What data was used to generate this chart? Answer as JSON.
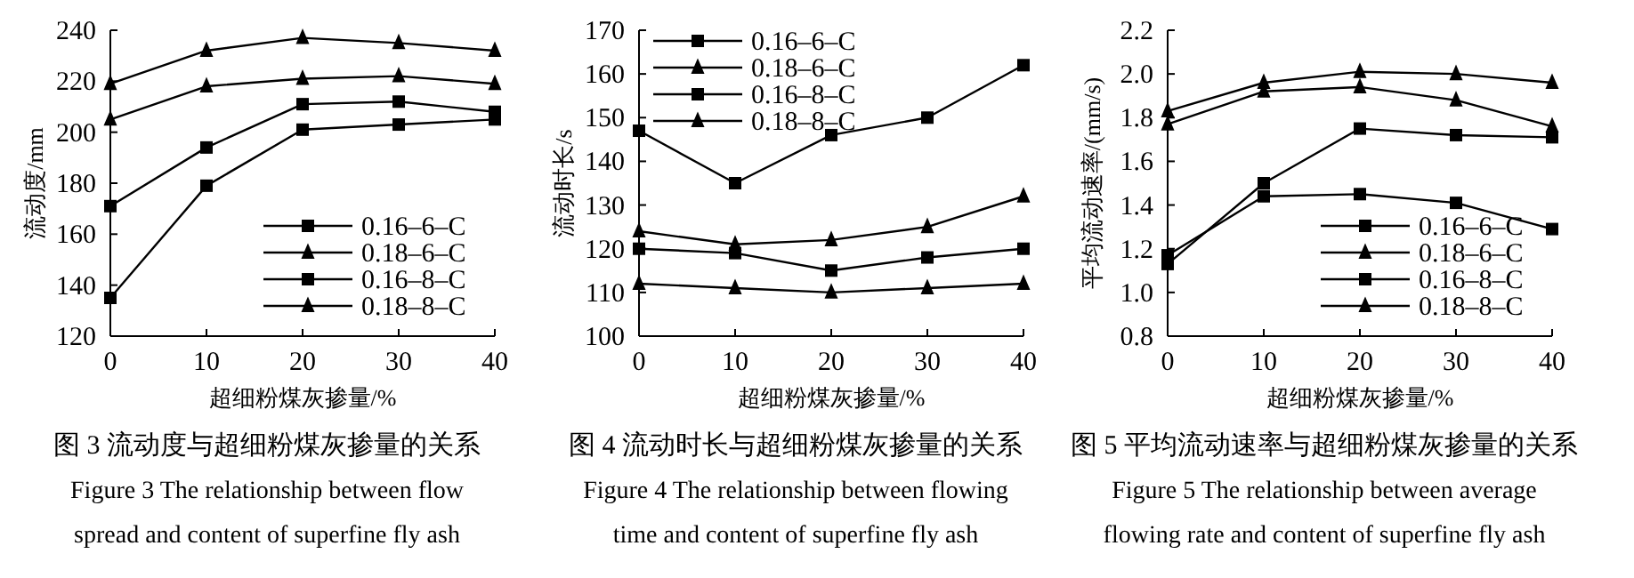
{
  "chart_data": [
    {
      "type": "line",
      "xlabel": "超细粉煤灰掺量/%",
      "ylabel": "流动度/mm",
      "x": [
        0,
        10,
        20,
        30,
        40
      ],
      "xlim": [
        0,
        40
      ],
      "xticks": [
        0,
        10,
        20,
        30,
        40
      ],
      "ylim": [
        120,
        240
      ],
      "yticks": [
        120,
        140,
        160,
        180,
        200,
        220,
        240
      ],
      "legend": "bottom right",
      "line_style": "solid",
      "series": [
        {
          "name": "0.16–6–C",
          "color": "#000000",
          "marker": "square",
          "values": [
            171,
            194,
            211,
            212,
            208
          ]
        },
        {
          "name": "0.18–6–C",
          "color": "#000000",
          "marker": "triangle",
          "values": [
            219,
            232,
            237,
            235,
            232
          ]
        },
        {
          "name": "0.16–8–C",
          "color": "#000000",
          "marker": "square",
          "values": [
            135,
            179,
            201,
            203,
            205
          ]
        },
        {
          "name": "0.18–8–C",
          "color": "#000000",
          "marker": "triangle",
          "values": [
            205,
            218,
            221,
            222,
            219
          ]
        }
      ],
      "annotations": [
        "图 3  流动度与超细粉煤灰掺量的关系",
        "Figure 3    The relationship between flow",
        "spread and content of superfine fly ash"
      ]
    },
    {
      "type": "line",
      "xlabel": "超细粉煤灰掺量/%",
      "ylabel": "流动时长/s",
      "x": [
        0,
        10,
        20,
        30,
        40
      ],
      "xlim": [
        0,
        40
      ],
      "xticks": [
        0,
        10,
        20,
        30,
        40
      ],
      "ylim": [
        100,
        170
      ],
      "yticks": [
        100,
        110,
        120,
        130,
        140,
        150,
        160,
        170
      ],
      "legend": "top left",
      "line_style": "solid",
      "series": [
        {
          "name": "0.16–6–C",
          "color": "#000000",
          "marker": "square",
          "values": [
            147,
            135,
            146,
            150,
            162
          ]
        },
        {
          "name": "0.18–6–C",
          "color": "#000000",
          "marker": "triangle",
          "values": [
            124,
            121,
            122,
            125,
            132
          ]
        },
        {
          "name": "0.16–8–C",
          "color": "#000000",
          "marker": "square",
          "values": [
            120,
            119,
            115,
            118,
            120
          ]
        },
        {
          "name": "0.18–8–C",
          "color": "#000000",
          "marker": "triangle",
          "values": [
            112,
            111,
            110,
            111,
            112
          ]
        }
      ],
      "annotations": [
        "图 4  流动时长与超细粉煤灰掺量的关系",
        "Figure 4    The relationship between flowing",
        "time and content of superfine fly ash"
      ]
    },
    {
      "type": "line",
      "xlabel": "超细粉煤灰掺量/%",
      "ylabel": "平均流动速率/(mm/s)",
      "x": [
        0,
        10,
        20,
        30,
        40
      ],
      "xlim": [
        0,
        40
      ],
      "xticks": [
        0,
        10,
        20,
        30,
        40
      ],
      "ylim": [
        0.8,
        2.2
      ],
      "yticks": [
        {
          "value": 0.8,
          "label": "0.8"
        },
        {
          "value": 1.0,
          "label": "1.0"
        },
        {
          "value": 1.2,
          "label": "1.2"
        },
        {
          "value": 1.4,
          "label": "1.4"
        },
        {
          "value": 1.6,
          "label": "1.6"
        },
        {
          "value": 1.8,
          "label": "1.8"
        },
        {
          "value": 2.0,
          "label": "2.0"
        },
        {
          "value": 2.2,
          "label": "2.2"
        }
      ],
      "legend": "bottom right",
      "line_style": "solid",
      "series": [
        {
          "name": "0.16–6–C",
          "color": "#000000",
          "marker": "square",
          "values": [
            1.17,
            1.44,
            1.45,
            1.41,
            1.29
          ]
        },
        {
          "name": "0.18–6–C",
          "color": "#000000",
          "marker": "triangle",
          "values": [
            1.77,
            1.92,
            1.94,
            1.88,
            1.76
          ]
        },
        {
          "name": "0.16–8–C",
          "color": "#000000",
          "marker": "square",
          "values": [
            1.13,
            1.5,
            1.75,
            1.72,
            1.71
          ]
        },
        {
          "name": "0.18–8–C",
          "color": "#000000",
          "marker": "triangle",
          "values": [
            1.83,
            1.96,
            2.01,
            2.0,
            1.96
          ]
        }
      ],
      "annotations": [
        "图 5  平均流动速率与超细粉煤灰掺量的关系",
        "Figure 5    The relationship between average",
        "flowing rate and content of superfine fly ash"
      ]
    }
  ]
}
